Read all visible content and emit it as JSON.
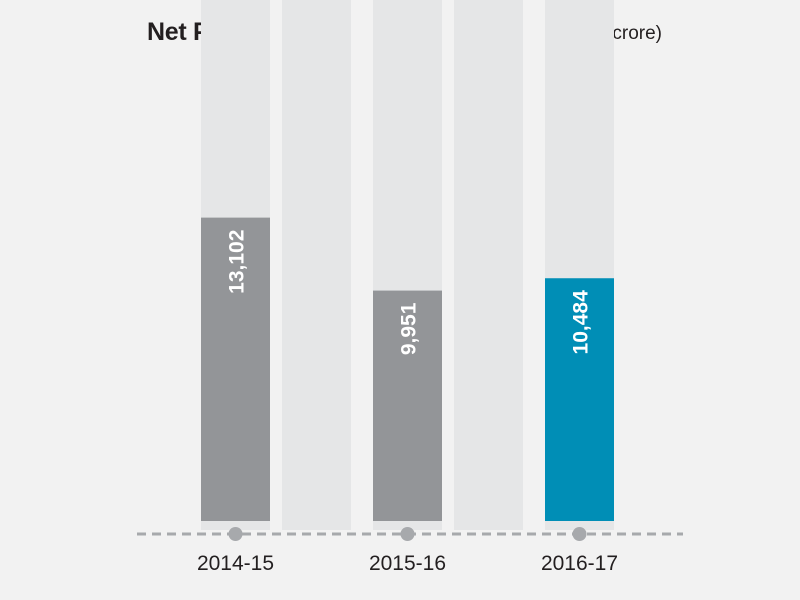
{
  "chart_data": {
    "type": "bar",
    "title": "Net Profit",
    "unit_label": "(₹ in crore)",
    "categories": [
      "2014-15",
      "2015-16",
      "2016-17"
    ],
    "values": [
      13102,
      9951,
      10484
    ],
    "value_labels": [
      "13,102",
      "9,951",
      "10,484"
    ],
    "bar_colors": [
      "#939598",
      "#939598",
      "#008eb6"
    ],
    "background_column_color": "#e5e6e7",
    "axis_line_color": "#a7a9ac",
    "ylim": [
      0,
      22500
    ],
    "grid": false,
    "legend": "none"
  }
}
